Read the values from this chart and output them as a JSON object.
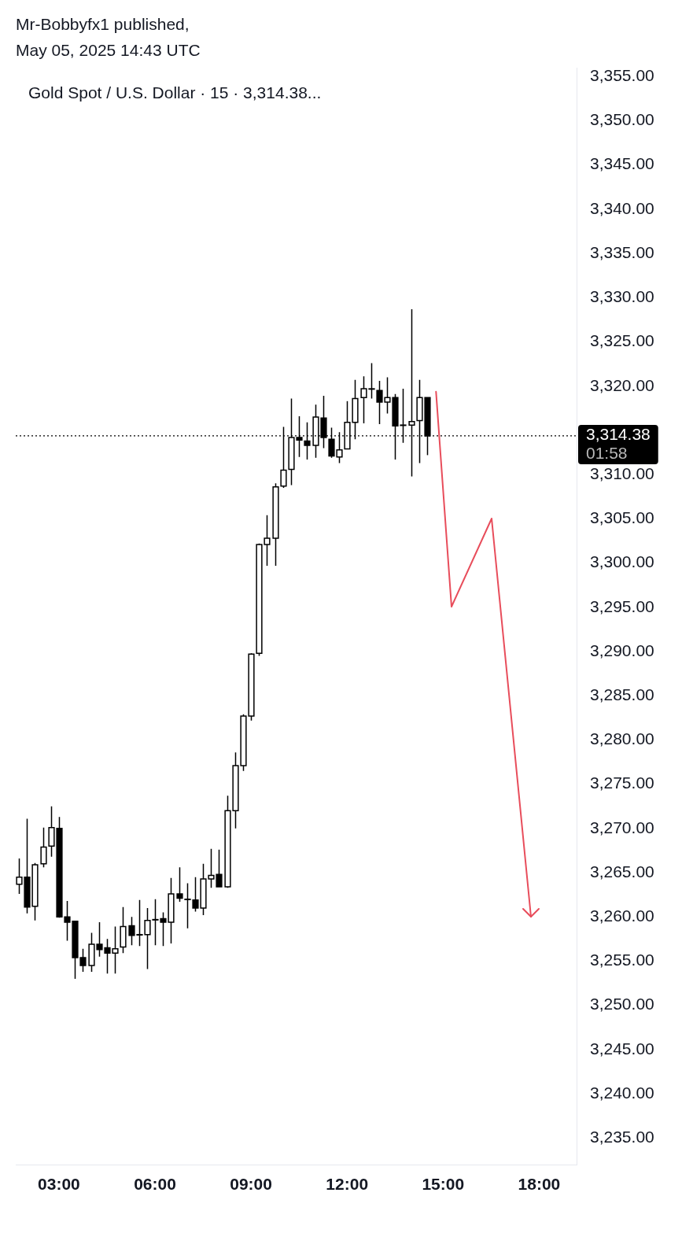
{
  "chart_data": {
    "type": "candlestick",
    "title": "Gold Spot / U.S. Dollar · 15 · 3,314.38...",
    "annotations": [
      "Mr-Bobbyfx1 published,",
      "May 05, 2025 14:43 UTC"
    ],
    "series": [
      {
        "type": "candlestick",
        "color": "#000000",
        "x": [
          1.75,
          2,
          2.25,
          2.5,
          2.75,
          3,
          3.25,
          3.5,
          3.75,
          4,
          4.25,
          4.5,
          4.75,
          5,
          5.25,
          5.5,
          5.75,
          6,
          6.25,
          6.5,
          6.75,
          7,
          7.25,
          7.5,
          7.75,
          8,
          8.25,
          8.5,
          8.75,
          9,
          9.25,
          9.5,
          9.75,
          10,
          10.25,
          10.5,
          10.75,
          11,
          11.25,
          11.5,
          11.75,
          12,
          12.25,
          12.5,
          12.75,
          13,
          13.25,
          13.5,
          13.75,
          14,
          14.25,
          14.5
        ],
        "ohlc": [
          [
            3263.7,
            3266.6,
            3262.6,
            3264.5
          ],
          [
            3264.5,
            3271.1,
            3260.4,
            3261.1
          ],
          [
            3261.2,
            3266.1,
            3259.6,
            3265.9
          ],
          [
            3266.0,
            3270.1,
            3265.6,
            3267.9
          ],
          [
            3268.0,
            3272.5,
            3266.8,
            3270.1
          ],
          [
            3270.0,
            3271.3,
            3259.9,
            3260.0
          ],
          [
            3260.0,
            3261.8,
            3257.3,
            3259.4
          ],
          [
            3259.5,
            3259.5,
            3253.0,
            3255.4
          ],
          [
            3255.4,
            3256.4,
            3253.8,
            3254.5
          ],
          [
            3254.5,
            3258.2,
            3253.8,
            3256.9
          ],
          [
            3256.9,
            3259.4,
            3255.5,
            3256.3
          ],
          [
            3256.5,
            3257.5,
            3253.6,
            3255.9
          ],
          [
            3255.9,
            3258.9,
            3253.6,
            3256.4
          ],
          [
            3256.6,
            3261.1,
            3255.9,
            3258.9
          ],
          [
            3259.0,
            3260.0,
            3256.8,
            3257.9
          ],
          [
            3258.0,
            3261.9,
            3256.7,
            3258.0
          ],
          [
            3258.0,
            3261.0,
            3254.1,
            3259.6
          ],
          [
            3259.7,
            3262.0,
            3256.8,
            3259.7
          ],
          [
            3259.8,
            3260.5,
            3256.7,
            3259.4
          ],
          [
            3259.4,
            3264.4,
            3257.0,
            3262.6
          ],
          [
            3262.6,
            3265.6,
            3261.7,
            3262.1
          ],
          [
            3262.0,
            3263.8,
            3258.7,
            3262.0
          ],
          [
            3261.9,
            3264.5,
            3260.6,
            3261.0
          ],
          [
            3261.0,
            3266.0,
            3260.2,
            3264.3
          ],
          [
            3264.3,
            3267.7,
            3263.3,
            3264.7
          ],
          [
            3264.8,
            3267.6,
            3263.4,
            3263.4
          ],
          [
            3263.4,
            3273.7,
            3263.3,
            3272.0
          ],
          [
            3272.0,
            3278.6,
            3270.0,
            3277.1
          ],
          [
            3277.1,
            3282.9,
            3276.5,
            3282.7
          ],
          [
            3282.7,
            3289.8,
            3282.2,
            3289.7
          ],
          [
            3289.8,
            3302.2,
            3289.5,
            3302.1
          ],
          [
            3302.1,
            3305.4,
            3299.7,
            3302.8
          ],
          [
            3302.8,
            3309.0,
            3299.7,
            3308.6
          ],
          [
            3308.7,
            3315.4,
            3308.5,
            3310.5
          ],
          [
            3310.6,
            3318.6,
            3308.8,
            3314.2
          ],
          [
            3314.2,
            3316.6,
            3312.0,
            3313.9
          ],
          [
            3313.8,
            3315.9,
            3311.7,
            3313.3
          ],
          [
            3313.3,
            3317.9,
            3311.9,
            3316.5
          ],
          [
            3316.4,
            3318.9,
            3313.0,
            3314.2
          ],
          [
            3314.0,
            3315.3,
            3311.9,
            3312.1
          ],
          [
            3312.0,
            3314.8,
            3311.3,
            3312.8
          ],
          [
            3312.9,
            3318.3,
            3312.9,
            3315.9
          ],
          [
            3315.9,
            3320.7,
            3314.0,
            3318.6
          ],
          [
            3318.7,
            3321.1,
            3315.8,
            3319.7
          ],
          [
            3319.7,
            3322.6,
            3318.6,
            3319.7
          ],
          [
            3319.5,
            3320.6,
            3315.7,
            3318.2
          ],
          [
            3318.2,
            3321.0,
            3316.9,
            3318.7
          ],
          [
            3318.7,
            3319.1,
            3311.7,
            3315.5
          ],
          [
            3315.6,
            3319.7,
            3313.6,
            3315.6
          ],
          [
            3315.6,
            3328.7,
            3309.8,
            3316.0
          ],
          [
            3316.1,
            3320.7,
            3311.3,
            3318.7
          ],
          [
            3318.7,
            3318.7,
            3312.2,
            3314.38
          ]
        ]
      }
    ],
    "xlim": [
      1.65,
      19.17
    ],
    "xticks": [
      {
        "value": 3,
        "label": "03:00"
      },
      {
        "value": 6,
        "label": "06:00"
      },
      {
        "value": 9,
        "label": "09:00"
      },
      {
        "value": 12,
        "label": "12:00"
      },
      {
        "value": 15,
        "label": "15:00"
      },
      {
        "value": 18,
        "label": "18:00"
      }
    ],
    "ylim": [
      3232,
      3356
    ],
    "yticks": [
      {
        "value": 3235,
        "label": "3,235.00"
      },
      {
        "value": 3240,
        "label": "3,240.00"
      },
      {
        "value": 3245,
        "label": "3,245.00"
      },
      {
        "value": 3250,
        "label": "3,250.00"
      },
      {
        "value": 3255,
        "label": "3,255.00"
      },
      {
        "value": 3260,
        "label": "3,260.00"
      },
      {
        "value": 3265,
        "label": "3,265.00"
      },
      {
        "value": 3270,
        "label": "3,270.00"
      },
      {
        "value": 3275,
        "label": "3,275.00"
      },
      {
        "value": 3280,
        "label": "3,280.00"
      },
      {
        "value": 3285,
        "label": "3,285.00"
      },
      {
        "value": 3290,
        "label": "3,290.00"
      },
      {
        "value": 3295,
        "label": "3,295.00"
      },
      {
        "value": 3300,
        "label": "3,300.00"
      },
      {
        "value": 3305,
        "label": "3,305.00"
      },
      {
        "value": 3310,
        "label": "3,310.00"
      },
      {
        "value": 3320,
        "label": "3,320.00"
      },
      {
        "value": 3325,
        "label": "3,325.00"
      },
      {
        "value": 3330,
        "label": "3,330.00"
      },
      {
        "value": 3335,
        "label": "3,335.00"
      },
      {
        "value": 3340,
        "label": "3,340.00"
      },
      {
        "value": 3345,
        "label": "3,345.00"
      },
      {
        "value": 3350,
        "label": "3,350.00"
      },
      {
        "value": 3355,
        "label": "3,355.00"
      }
    ],
    "ref_lines": [
      {
        "axis": "y",
        "value": 3314.38,
        "label": "3,314.38\n01:58",
        "color": "#000000",
        "line_style": "dotted"
      }
    ]
  }
}
